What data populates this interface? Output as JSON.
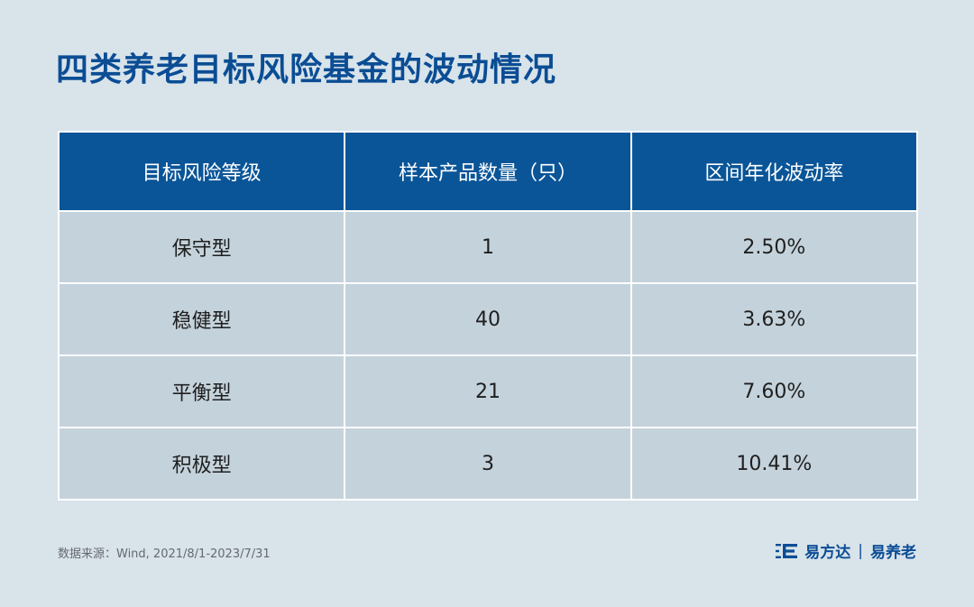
{
  "title": "四类养老目标风险基金的波动情况",
  "chart_data": {
    "type": "table",
    "columns": [
      "目标风险等级",
      "样本产品数量（只）",
      "区间年化波动率"
    ],
    "rows": [
      [
        "保守型",
        "1",
        "2.50%"
      ],
      [
        "稳健型",
        "40",
        "3.63%"
      ],
      [
        "平衡型",
        "21",
        "7.60%"
      ],
      [
        "积极型",
        "3",
        "10.41%"
      ]
    ],
    "header_color": "#0a5598",
    "cell_color": "#c4d2db"
  },
  "source": "数据来源：Wind, 2021/8/1-2023/7/31",
  "brand": {
    "name": "易方达",
    "separator": "|",
    "sub": "易养老",
    "logo_icon": "efunds-logo-icon"
  },
  "colors": {
    "background": "#d8e3ea",
    "title": "#0b4d94"
  }
}
